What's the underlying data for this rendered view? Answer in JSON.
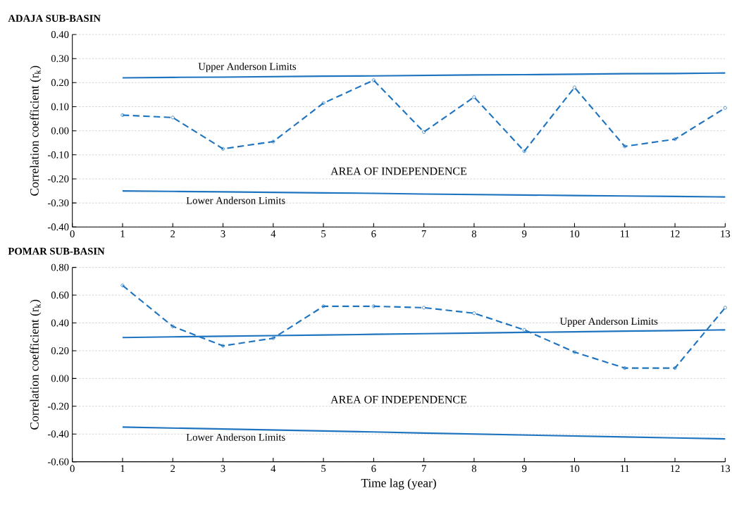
{
  "chart_data": [
    {
      "type": "line",
      "title": "ADAJA SUB-BASIN",
      "ylabel": "Correlation coefficient (r$_{k}$)",
      "x": [
        1,
        2,
        3,
        4,
        5,
        6,
        7,
        8,
        9,
        10,
        11,
        12,
        13
      ],
      "series": [
        {
          "color": "#1f74bf",
          "line_style": "dashed",
          "marker": "circle",
          "values": [
            0.065,
            0.055,
            -0.075,
            -0.045,
            0.115,
            0.21,
            -0.005,
            0.14,
            -0.085,
            0.18,
            -0.065,
            -0.035,
            0.095
          ]
        },
        {
          "name": "Upper Anderson Limits",
          "color": "#1f74bf",
          "line_style": "solid",
          "marker": "none",
          "values": [
            0.22,
            0.222,
            0.223,
            0.225,
            0.227,
            0.228,
            0.23,
            0.232,
            0.233,
            0.235,
            0.237,
            0.238,
            0.24
          ]
        },
        {
          "name": "Lower Anderson Limits",
          "color": "#1f74bf",
          "line_style": "solid",
          "marker": "none",
          "values": [
            -0.25,
            -0.252,
            -0.254,
            -0.256,
            -0.258,
            -0.26,
            -0.263,
            -0.265,
            -0.267,
            -0.269,
            -0.271,
            -0.273,
            -0.275
          ]
        }
      ],
      "annotations": [
        "AREA OF INDEPENDENCE"
      ],
      "xlim": [
        0,
        13
      ],
      "xticks": [
        0,
        1,
        2,
        3,
        4,
        5,
        6,
        7,
        8,
        9,
        10,
        11,
        12,
        13
      ],
      "ylim": [
        -0.4,
        0.4
      ],
      "yticks": [
        {
          "value": -0.4,
          "label": "-0.40"
        },
        {
          "value": -0.3,
          "label": "-0.30"
        },
        {
          "value": -0.2,
          "label": "-0.20"
        },
        {
          "value": -0.1,
          "label": "-0.10"
        },
        {
          "value": 0,
          "label": "0.00"
        },
        {
          "value": 0.1,
          "label": "0.10"
        },
        {
          "value": 0.2,
          "label": "0.20"
        },
        {
          "value": 0.3,
          "label": "0.30"
        },
        {
          "value": 0.4,
          "label": "0.40"
        }
      ],
      "grid": "y"
    },
    {
      "type": "line",
      "title": "POMAR SUB-BASIN",
      "ylabel": "Correlation coefficient (r$_{k}$)",
      "xlabel": "Time lag  (year)",
      "x": [
        1,
        2,
        3,
        4,
        5,
        6,
        7,
        8,
        9,
        10,
        11,
        12,
        13
      ],
      "series": [
        {
          "color": "#1f74bf",
          "line_style": "dashed",
          "marker": "circle",
          "values": [
            0.67,
            0.375,
            0.235,
            0.29,
            0.52,
            0.52,
            0.51,
            0.47,
            0.35,
            0.19,
            0.075,
            0.075,
            0.51
          ]
        },
        {
          "name": "Upper Anderson Limits",
          "color": "#1f74bf",
          "line_style": "solid",
          "marker": "none",
          "values": [
            0.295,
            0.3,
            0.304,
            0.309,
            0.313,
            0.318,
            0.323,
            0.327,
            0.332,
            0.336,
            0.341,
            0.345,
            0.35
          ]
        },
        {
          "name": "Lower Anderson Limits",
          "color": "#1f74bf",
          "line_style": "solid",
          "marker": "none",
          "values": [
            -0.35,
            -0.357,
            -0.364,
            -0.371,
            -0.378,
            -0.385,
            -0.393,
            -0.4,
            -0.407,
            -0.414,
            -0.421,
            -0.428,
            -0.435
          ]
        }
      ],
      "annotations": [
        "AREA OF INDEPENDENCE"
      ],
      "xlim": [
        0,
        13
      ],
      "xticks": [
        0,
        1,
        2,
        3,
        4,
        5,
        6,
        7,
        8,
        9,
        10,
        11,
        12,
        13
      ],
      "ylim": [
        -0.6,
        0.8
      ],
      "yticks": [
        {
          "value": -0.6,
          "label": "-0.60"
        },
        {
          "value": -0.4,
          "label": "-0.40"
        },
        {
          "value": -0.2,
          "label": "-0.20"
        },
        {
          "value": 0,
          "label": "0.00"
        },
        {
          "value": 0.2,
          "label": "0.20"
        },
        {
          "value": 0.4,
          "label": "0.40"
        },
        {
          "value": 0.6,
          "label": "0.60"
        },
        {
          "value": 0.8,
          "label": "0.80"
        }
      ],
      "grid": "y"
    }
  ]
}
